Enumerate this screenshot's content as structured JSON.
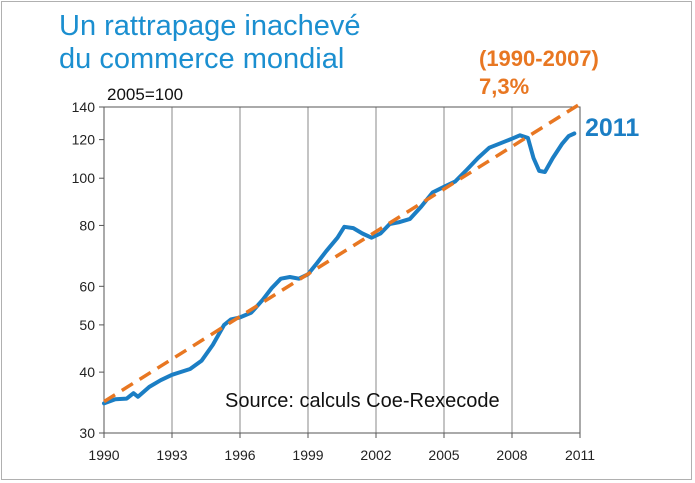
{
  "title_lines": [
    "Un rattrapage inachevé",
    "du commerce mondial"
  ],
  "chart_data": {
    "type": "line",
    "title": "Un rattrapage inachevé du commerce mondial",
    "ylabel": "2005=100",
    "y_scale": "log",
    "ylim": [
      30,
      140
    ],
    "xlim": [
      1990,
      2011
    ],
    "y_ticks": [
      30,
      40,
      50,
      60,
      80,
      100,
      120,
      140
    ],
    "x_ticks": [
      1990,
      1993,
      1996,
      1999,
      2002,
      2005,
      2008,
      2011
    ],
    "grid": "vertical",
    "series": [
      {
        "name": "",
        "color": "#1b7ec4",
        "style": "solid",
        "points": [
          [
            1990.0,
            34.5
          ],
          [
            1990.5,
            35.2
          ],
          [
            1991.0,
            35.3
          ],
          [
            1991.3,
            36.2
          ],
          [
            1991.5,
            35.6
          ],
          [
            1992.0,
            37.3
          ],
          [
            1992.5,
            38.5
          ],
          [
            1993.0,
            39.5
          ],
          [
            1993.3,
            39.9
          ],
          [
            1993.8,
            40.6
          ],
          [
            1994.3,
            42.2
          ],
          [
            1994.8,
            45.5
          ],
          [
            1995.3,
            50.0
          ],
          [
            1995.6,
            51.3
          ],
          [
            1996.0,
            51.8
          ],
          [
            1996.5,
            53.0
          ],
          [
            1997.0,
            56.3
          ],
          [
            1997.4,
            59.5
          ],
          [
            1997.8,
            62.2
          ],
          [
            1998.2,
            62.7
          ],
          [
            1998.6,
            62.2
          ],
          [
            1999.0,
            63.5
          ],
          [
            1999.4,
            67.0
          ],
          [
            1999.8,
            70.8
          ],
          [
            2000.3,
            75.5
          ],
          [
            2000.6,
            79.5
          ],
          [
            2001.0,
            79.0
          ],
          [
            2001.4,
            77.0
          ],
          [
            2001.8,
            75.5
          ],
          [
            2002.2,
            77.0
          ],
          [
            2002.6,
            80.5
          ],
          [
            2003.0,
            81.2
          ],
          [
            2003.5,
            82.5
          ],
          [
            2004.0,
            87.5
          ],
          [
            2004.5,
            93.5
          ],
          [
            2005.0,
            96.0
          ],
          [
            2005.5,
            98.5
          ],
          [
            2006.0,
            104.0
          ],
          [
            2006.5,
            110.0
          ],
          [
            2007.0,
            115.5
          ],
          [
            2007.5,
            118.0
          ],
          [
            2008.0,
            120.5
          ],
          [
            2008.35,
            122.5
          ],
          [
            2008.7,
            121.0
          ],
          [
            2008.95,
            110.0
          ],
          [
            2009.2,
            103.5
          ],
          [
            2009.45,
            103.0
          ],
          [
            2009.8,
            110.0
          ],
          [
            2010.2,
            117.5
          ],
          [
            2010.5,
            122.0
          ],
          [
            2010.75,
            123.5
          ]
        ]
      },
      {
        "name": "",
        "color": "#e87722",
        "style": "dashed",
        "points": [
          [
            1990.0,
            34.8
          ],
          [
            2011.0,
            142.0
          ]
        ]
      }
    ],
    "annotations": {
      "trend_period": "(1990-2007)",
      "trend_rate": "7,3%",
      "end_label": "2011",
      "base": "2005=100",
      "source": "Source: calculs Coe-Rexecode"
    }
  }
}
